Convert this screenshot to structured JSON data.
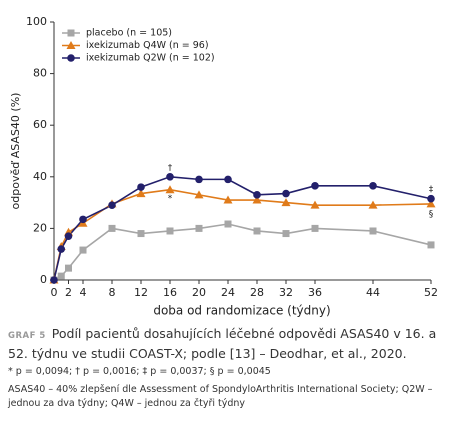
{
  "chart_data": {
    "type": "line",
    "xlabel": "doba od randomizace (týdny)",
    "ylabel": "odpověď ASAS40 (%)",
    "x": [
      0,
      1,
      2,
      4,
      8,
      12,
      16,
      20,
      24,
      28,
      32,
      36,
      44,
      52
    ],
    "series": [
      {
        "name": "placebo (n = 105)",
        "color": "#a6a6a6",
        "marker": "square",
        "values": [
          0,
          1.5,
          4.6,
          11.6,
          20,
          18,
          19,
          20,
          21.7,
          19,
          18,
          20,
          19,
          13.6
        ]
      },
      {
        "name": "ixekizumab Q4W (n = 96)",
        "color": "#e07b1a",
        "marker": "triangle",
        "values": [
          0,
          13,
          18.5,
          22,
          29.5,
          33.5,
          35,
          33,
          31,
          31,
          30,
          29,
          29,
          29.5
        ]
      },
      {
        "name": "ixekizumab Q2W (n = 102)",
        "color": "#23206b",
        "marker": "circle",
        "values": [
          0,
          12,
          17,
          23.5,
          29,
          36,
          40,
          39,
          39,
          33,
          33.5,
          36.5,
          36.5,
          31.5
        ]
      }
    ],
    "xlim": [
      0,
      52
    ],
    "xticks": [
      0,
      2,
      4,
      8,
      12,
      16,
      20,
      24,
      28,
      32,
      36,
      44,
      52
    ],
    "ylim": [
      0,
      100
    ],
    "yticks": [
      0,
      20,
      40,
      60,
      80,
      100
    ],
    "grid": false,
    "legend": "upper left",
    "annotations": [
      {
        "text": "†",
        "x": 16,
        "y": 43.5
      },
      {
        "text": "*",
        "x": 16,
        "y": 31.5
      },
      {
        "text": "‡",
        "x": 52,
        "y": 35
      },
      {
        "text": "§",
        "x": 52,
        "y": 25.5
      }
    ]
  },
  "caption": {
    "label": "GRAF 5",
    "text": "Podíl pacientů dosahujících léčebné odpovědi ASAS40 v 16. a 52. týdnu ve studii COAST-X; podle [13] – Deodhar, et al., 2020.",
    "footnotes": "* p = 0,0094; † p = 0,0016; ‡ p = 0,0037; § p = 0,0045",
    "abbreviations": "ASAS40 – 40% zlepšení dle Assessment of SpondyloArthritis International Society; Q2W – jednou za dva týdny; Q4W – jednou za čtyři týdny"
  }
}
